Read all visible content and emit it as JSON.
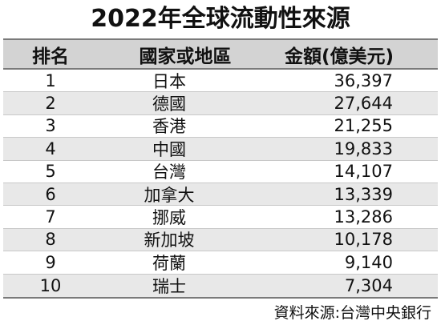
{
  "title": "2022年全球流動性來源",
  "table": {
    "headers": {
      "rank": "排名",
      "country": "國家或地區",
      "amount": "金額(億美元)"
    },
    "rows": [
      {
        "rank": "1",
        "country": "日本",
        "amount": "36,397"
      },
      {
        "rank": "2",
        "country": "德國",
        "amount": "27,644"
      },
      {
        "rank": "3",
        "country": "香港",
        "amount": "21,255"
      },
      {
        "rank": "4",
        "country": "中國",
        "amount": "19,833"
      },
      {
        "rank": "5",
        "country": "台灣",
        "amount": "14,107"
      },
      {
        "rank": "6",
        "country": "加拿大",
        "amount": "13,339"
      },
      {
        "rank": "7",
        "country": "挪威",
        "amount": "13,286"
      },
      {
        "rank": "8",
        "country": "新加坡",
        "amount": "10,178"
      },
      {
        "rank": "9",
        "country": "荷蘭",
        "amount": "9,140"
      },
      {
        "rank": "10",
        "country": "瑞士",
        "amount": "7,304"
      }
    ]
  },
  "source": "資料來源:台灣中央銀行"
}
